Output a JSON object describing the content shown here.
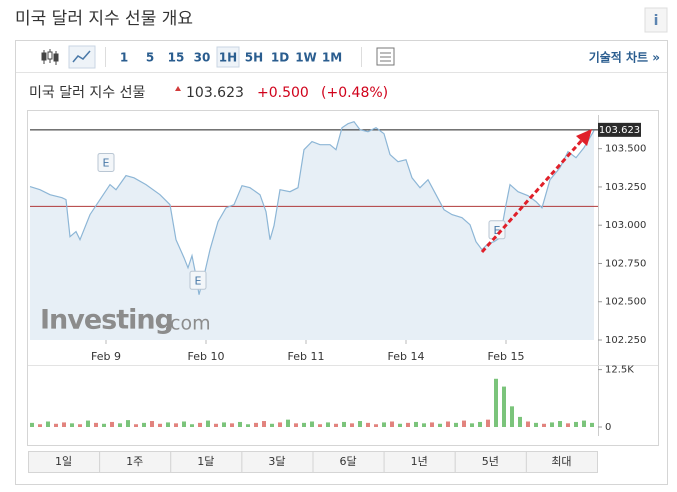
{
  "header": {
    "title": "미국 달러 지수 선물 개요",
    "info": "i"
  },
  "toolbar": {
    "intervals": [
      {
        "label": "1"
      },
      {
        "label": "5"
      },
      {
        "label": "15"
      },
      {
        "label": "30"
      },
      {
        "label": "1H",
        "selected": true
      },
      {
        "label": "5H"
      },
      {
        "label": "1D"
      },
      {
        "label": "1W"
      },
      {
        "label": "1M"
      }
    ],
    "technical_link": "기술적 차트 »"
  },
  "quote": {
    "name": "미국 달러 지수 선물",
    "price": "103.623",
    "change": "+0.500",
    "change_percent": "(+0.48%)"
  },
  "watermark": {
    "brand": "Investing",
    "suffix": ".com"
  },
  "chart_data": [
    {
      "type": "line",
      "color": "#8db6d6",
      "fill": "#e7eff6",
      "x": [
        0.24,
        0.34,
        0.44,
        0.56,
        0.6,
        0.64,
        0.7,
        0.74,
        0.84,
        0.94,
        1.04,
        1.1,
        1.2,
        1.28,
        1.4,
        1.54,
        1.64,
        1.7,
        1.78,
        1.82,
        1.86,
        1.9,
        1.93,
        1.98,
        2.04,
        2.12,
        2.2,
        2.28,
        2.36,
        2.44,
        2.54,
        2.6,
        2.64,
        2.68,
        2.74,
        2.84,
        2.92,
        2.98,
        3.06,
        3.14,
        3.24,
        3.3,
        3.36,
        3.42,
        3.48,
        3.54,
        3.62,
        3.7,
        3.78,
        3.84,
        3.92,
        4.0,
        4.06,
        4.14,
        4.22,
        4.3,
        4.38,
        4.46,
        4.56,
        4.64,
        4.7,
        4.76,
        4.82,
        4.88,
        4.94,
        5.0,
        5.04,
        5.12,
        5.22,
        5.3,
        5.36,
        5.44,
        5.54,
        5.62,
        5.7,
        5.78,
        5.88
      ],
      "values": [
        103.252,
        103.232,
        103.199,
        103.18,
        103.167,
        102.925,
        102.958,
        102.905,
        103.069,
        103.167,
        103.265,
        103.232,
        103.324,
        103.31,
        103.265,
        103.199,
        103.134,
        102.905,
        102.788,
        102.722,
        102.801,
        102.67,
        102.546,
        102.67,
        102.84,
        103.023,
        103.114,
        103.134,
        103.258,
        103.245,
        103.199,
        103.088,
        102.905,
        102.997,
        103.232,
        103.219,
        103.245,
        103.493,
        103.546,
        103.526,
        103.526,
        103.493,
        103.637,
        103.663,
        103.676,
        103.624,
        103.611,
        103.637,
        103.598,
        103.461,
        103.415,
        103.428,
        103.31,
        103.245,
        103.297,
        103.199,
        103.101,
        103.069,
        103.049,
        103.003,
        102.892,
        102.84,
        102.879,
        102.892,
        102.918,
        103.134,
        103.265,
        103.219,
        103.193,
        103.154,
        103.114,
        103.297,
        103.376,
        103.48,
        103.441,
        103.507,
        103.618
      ],
      "last_price": 103.623,
      "last_price_color": "#222222",
      "previous_close": 103.123,
      "previous_close_color": "#b03a3a",
      "annotations": [
        {
          "text": "E",
          "x": 1.0,
          "y": 103.41
        },
        {
          "text": "E",
          "x": 1.92,
          "y": 102.64
        },
        {
          "text": "E",
          "x": 4.91,
          "y": 102.97
        }
      ],
      "xlim": [
        0.24,
        5.92
      ],
      "xticks": [
        {
          "value": 1,
          "label": "Feb 9"
        },
        {
          "value": 2,
          "label": "Feb 10"
        },
        {
          "value": 3,
          "label": "Feb 11"
        },
        {
          "value": 4,
          "label": "Feb 14"
        },
        {
          "value": 5,
          "label": "Feb 15"
        }
      ],
      "ylim": [
        102.25,
        103.72
      ],
      "yticks": [
        {
          "value": 103.5,
          "label": "103.500"
        },
        {
          "value": 103.25,
          "label": "103.250"
        },
        {
          "value": 103.0,
          "label": "103.000"
        },
        {
          "value": 102.75,
          "label": "102.750"
        },
        {
          "value": 102.5,
          "label": "102.500"
        },
        {
          "value": 102.25,
          "label": "102.250"
        }
      ]
    },
    {
      "type": "bar",
      "xlim": [
        0.24,
        5.92
      ],
      "ylim": [
        0,
        13500
      ],
      "yticks": [
        {
          "value": 12500,
          "label": "12.5K"
        },
        0
      ],
      "x": [
        0.26,
        0.34,
        0.42,
        0.5,
        0.58,
        0.66,
        0.74,
        0.82,
        0.9,
        0.98,
        1.06,
        1.14,
        1.22,
        1.3,
        1.38,
        1.46,
        1.54,
        1.62,
        1.7,
        1.78,
        1.86,
        1.94,
        2.02,
        2.1,
        2.18,
        2.26,
        2.34,
        2.42,
        2.5,
        2.58,
        2.66,
        2.74,
        2.82,
        2.9,
        2.98,
        3.06,
        3.14,
        3.22,
        3.3,
        3.38,
        3.46,
        3.54,
        3.62,
        3.7,
        3.78,
        3.86,
        3.94,
        4.02,
        4.1,
        4.18,
        4.26,
        4.34,
        4.42,
        4.5,
        4.58,
        4.66,
        4.74,
        4.82,
        4.9,
        4.98,
        5.06,
        5.14,
        5.22,
        5.3,
        5.38,
        5.46,
        5.54,
        5.62,
        5.7,
        5.78,
        5.86
      ],
      "values": [
        900,
        600,
        1200,
        700,
        1000,
        800,
        600,
        1400,
        900,
        700,
        1100,
        800,
        1500,
        600,
        900,
        1300,
        700,
        1000,
        800,
        1200,
        600,
        900,
        1400,
        700,
        1000,
        800,
        1100,
        600,
        900,
        1300,
        700,
        1000,
        1600,
        800,
        900,
        1200,
        600,
        1000,
        700,
        1100,
        800,
        1300,
        900,
        600,
        1000,
        1200,
        700,
        900,
        1100,
        800,
        1000,
        700,
        1200,
        900,
        1400,
        800,
        1100,
        1600,
        10500,
        8800,
        4500,
        2200,
        1200,
        900,
        700,
        1000,
        1300,
        800,
        1100,
        1400,
        900
      ],
      "colors": [
        "#7bc47b",
        "#e2837e",
        "#7bc47b",
        "#e2837e",
        "#e2837e",
        "#7bc47b",
        "#e2837e",
        "#7bc47b",
        "#e2837e",
        "#7bc47b",
        "#e2837e",
        "#7bc47b",
        "#7bc47b",
        "#e2837e",
        "#7bc47b",
        "#e2837e",
        "#e2837e",
        "#7bc47b",
        "#e2837e",
        "#7bc47b",
        "#7bc47b",
        "#e2837e",
        "#7bc47b",
        "#e2837e",
        "#7bc47b",
        "#e2837e",
        "#7bc47b",
        "#7bc47b",
        "#e2837e",
        "#e2837e",
        "#7bc47b",
        "#e2837e",
        "#7bc47b",
        "#e2837e",
        "#7bc47b",
        "#7bc47b",
        "#e2837e",
        "#7bc47b",
        "#e2837e",
        "#7bc47b",
        "#e2837e",
        "#7bc47b",
        "#e2837e",
        "#e2837e",
        "#7bc47b",
        "#e2837e",
        "#7bc47b",
        "#e2837e",
        "#7bc47b",
        "#7bc47b",
        "#e2837e",
        "#7bc47b",
        "#e2837e",
        "#7bc47b",
        "#e2837e",
        "#7bc47b",
        "#7bc47b",
        "#e2837e",
        "#7bc47b",
        "#7bc47b",
        "#7bc47b",
        "#7bc47b",
        "#e2837e",
        "#7bc47b",
        "#e2837e",
        "#7bc47b",
        "#7bc47b",
        "#e2837e",
        "#7bc47b",
        "#7bc47b",
        "#7bc47b"
      ]
    }
  ],
  "range_buttons": [
    "1일",
    "1주",
    "1달",
    "3달",
    "6달",
    "1년",
    "5년",
    "최대"
  ]
}
